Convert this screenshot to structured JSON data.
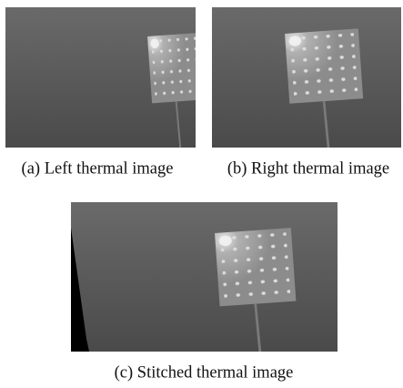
{
  "figure": {
    "captions": [
      "(a) Left thermal image",
      "(b) Right thermal image",
      "(c) Stitched thermal image"
    ]
  }
}
